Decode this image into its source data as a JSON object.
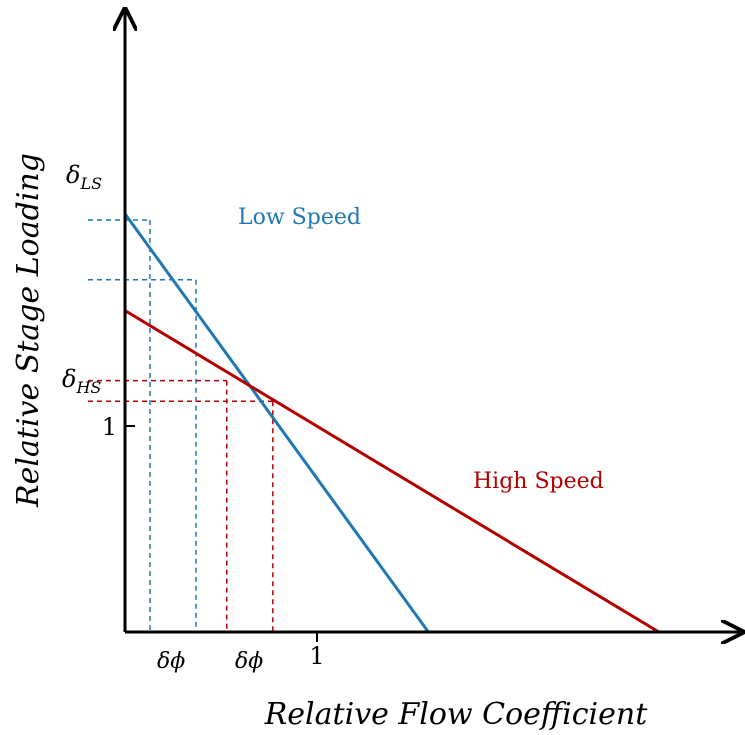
{
  "chart_data": {
    "type": "line",
    "xlabel": "Relative Flow Coefficient",
    "ylabel": "Relative Stage Loading",
    "x_ticks": [
      {
        "value": 1,
        "label": "1"
      }
    ],
    "y_ticks": [
      {
        "value": 1,
        "label": "1"
      }
    ],
    "xlim": [
      0,
      2.25
    ],
    "ylim": [
      0,
      2.48
    ],
    "grid": false,
    "legend": "none",
    "series": [
      {
        "name": "Low Speed",
        "color": "#1f77b4",
        "x": [
          0,
          1.58
        ],
        "y": [
          2.03,
          0.0
        ]
      },
      {
        "name": "High Speed",
        "color": "#b30000",
        "x": [
          0,
          2.78
        ],
        "y": [
          1.56,
          0.0
        ]
      }
    ],
    "annotations": {
      "low_speed": {
        "color": "#1f77b4",
        "x_left": 0.13,
        "x_right": 0.37,
        "y_lower": 1.71,
        "y_upper": 2.0,
        "delta_y_label": "δ",
        "delta_y_subscript": "LS",
        "delta_x_label": "δϕ"
      },
      "high_speed": {
        "color": "#b30000",
        "x_left": 0.53,
        "x_right": 0.77,
        "y_lower": 1.12,
        "y_upper": 1.22,
        "delta_y_label": "δ",
        "delta_y_subscript": "HS",
        "delta_x_label": "δϕ"
      }
    }
  }
}
